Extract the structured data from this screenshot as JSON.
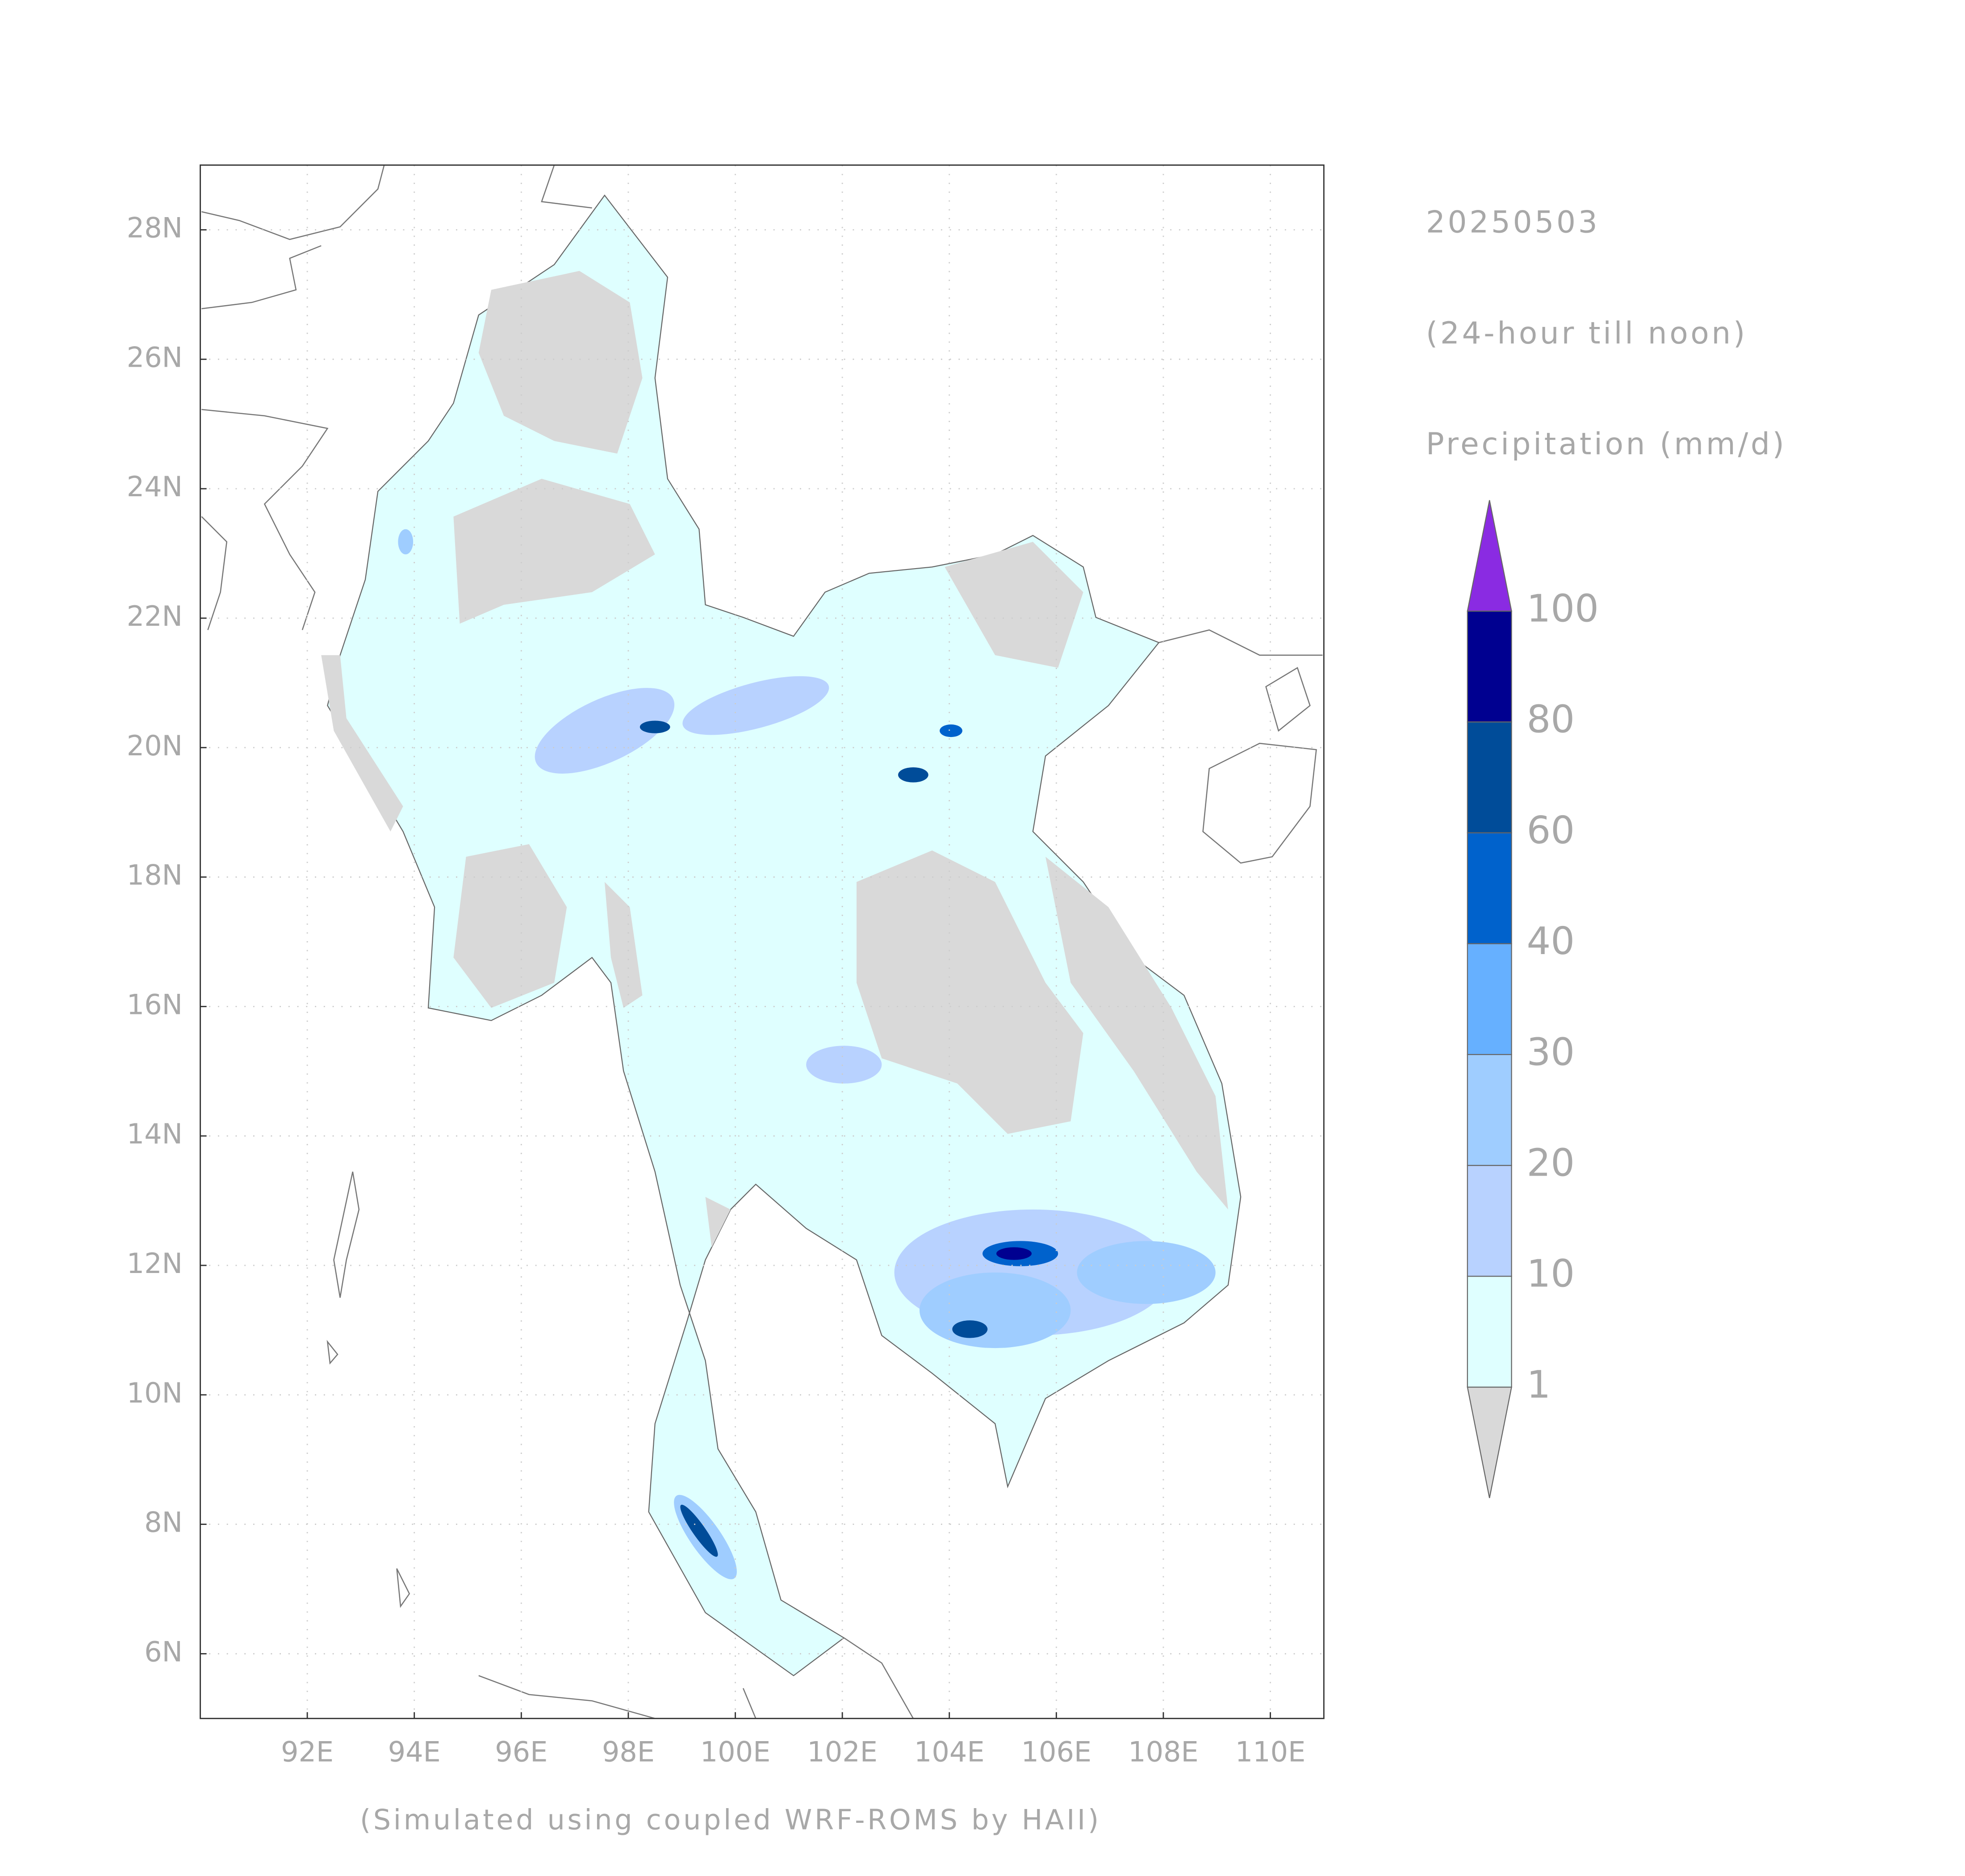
{
  "map": {
    "date": "20250503",
    "period": "(24-hour till noon)",
    "variable": "Precipitation (mm/d)",
    "footer": "(Simulated using coupled WRF-ROMS by HAII)",
    "xlim": [
      90,
      111
    ],
    "ylim": [
      5,
      29
    ],
    "xticks": [
      {
        "value": 92,
        "label": "92E"
      },
      {
        "value": 94,
        "label": "94E"
      },
      {
        "value": 96,
        "label": "96E"
      },
      {
        "value": 98,
        "label": "98E"
      },
      {
        "value": 100,
        "label": "100E"
      },
      {
        "value": 102,
        "label": "102E"
      },
      {
        "value": 104,
        "label": "104E"
      },
      {
        "value": 106,
        "label": "106E"
      },
      {
        "value": 108,
        "label": "108E"
      },
      {
        "value": 110,
        "label": "110E"
      }
    ],
    "yticks": [
      {
        "value": 6,
        "label": "6N"
      },
      {
        "value": 8,
        "label": "8N"
      },
      {
        "value": 10,
        "label": "10N"
      },
      {
        "value": 12,
        "label": "12N"
      },
      {
        "value": 14,
        "label": "14N"
      },
      {
        "value": 16,
        "label": "16N"
      },
      {
        "value": 18,
        "label": "18N"
      },
      {
        "value": 20,
        "label": "20N"
      },
      {
        "value": 22,
        "label": "22N"
      },
      {
        "value": 24,
        "label": "24N"
      },
      {
        "value": 26,
        "label": "26N"
      },
      {
        "value": 28,
        "label": "28N"
      }
    ],
    "grid": true,
    "colorbar": {
      "levels": [
        1,
        10,
        20,
        30,
        40,
        60,
        80,
        100
      ],
      "colors": [
        "#d9d9d9",
        "#dfffff",
        "#b8d2ff",
        "#9fcdff",
        "#66b0ff",
        "#0062cc",
        "#004c99",
        "#000090",
        "#8a2be2"
      ]
    }
  }
}
